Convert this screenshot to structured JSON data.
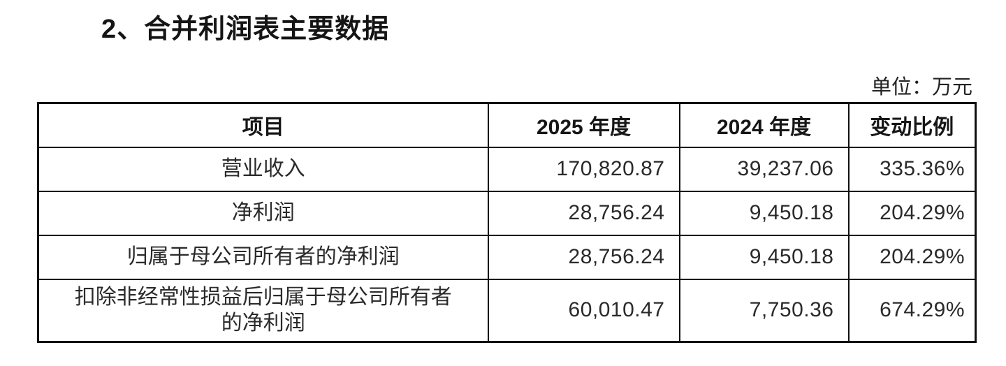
{
  "page": {
    "title": "2、合并利润表主要数据",
    "unit_label": "单位：万元"
  },
  "table": {
    "columns": [
      "项目",
      "2025 年度",
      "2024 年度",
      "变动比例"
    ],
    "rows": [
      {
        "item": "营业收入",
        "y2025": "170,820.87",
        "y2024": "39,237.06",
        "change": "335.36%"
      },
      {
        "item": "净利润",
        "y2025": "28,756.24",
        "y2024": "9,450.18",
        "change": "204.29%"
      },
      {
        "item": "归属于母公司所有者的净利润",
        "y2025": "28,756.24",
        "y2024": "9,450.18",
        "change": "204.29%"
      },
      {
        "item": "扣除非经常性损益后归属于母公司所有者\n的净利润",
        "y2025": "60,010.47",
        "y2024": "7,750.36",
        "change": "674.29%"
      }
    ]
  },
  "colors": {
    "text": "#1c1c1c",
    "border": "#101010",
    "background": "#ffffff"
  }
}
